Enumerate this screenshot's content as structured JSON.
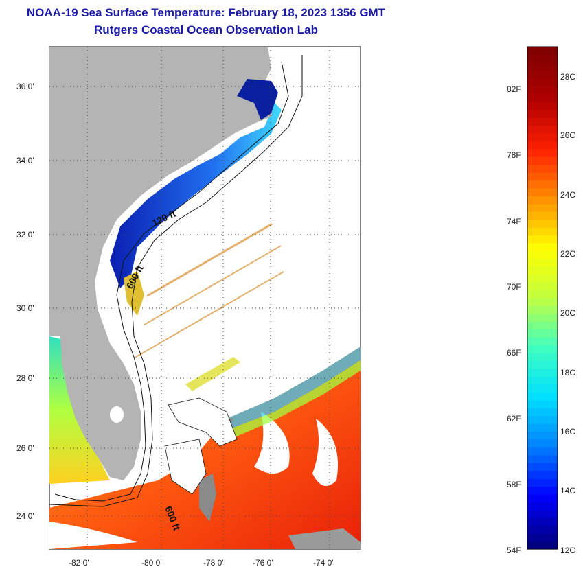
{
  "title": {
    "line1": "NOAA-19 Sea Surface Temperature:  February 18, 2023 1356 GMT",
    "line2": "Rutgers Coastal Ocean Observation Lab"
  },
  "map": {
    "lat_labels": [
      "36 0'",
      "34 0'",
      "32 0'",
      "30 0'",
      "28 0'",
      "26 0'",
      "24 0'"
    ],
    "lon_labels": [
      "-82 0'",
      "-80 0'",
      "-78 0'",
      "-76 0'",
      "-74 0'"
    ],
    "contour_labels": [
      "120 ft",
      "600 ft",
      "600 ft"
    ],
    "colors": {
      "land": "#b4b4b4",
      "cloud": "#ffffff",
      "cold": "#1a2fc8",
      "warm": "#ff4a10"
    }
  },
  "colorbar": {
    "f_labels": [
      "82F",
      "78F",
      "74F",
      "70F",
      "66F",
      "62F",
      "58F",
      "54F"
    ],
    "c_labels": [
      "28C",
      "26C",
      "24C",
      "22C",
      "20C",
      "18C",
      "16C",
      "14C",
      "12C"
    ],
    "min_f": 54,
    "max_f": 84.2,
    "stops": [
      "#000080",
      "#0000ff",
      "#0080ff",
      "#00e0ff",
      "#40ffc0",
      "#c0ff40",
      "#ffff00",
      "#ff9000",
      "#ff2000",
      "#b00000",
      "#800000"
    ]
  }
}
